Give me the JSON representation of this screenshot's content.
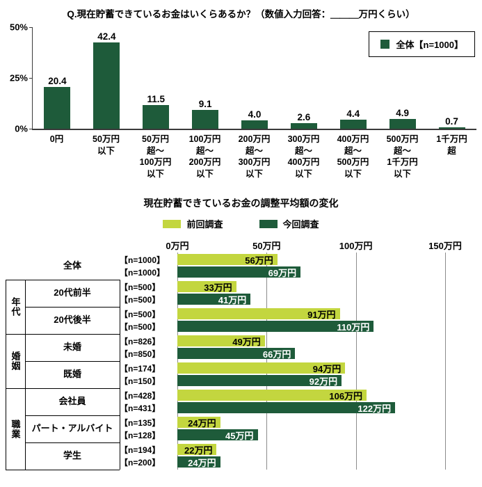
{
  "colors": {
    "dark_green": "#1e5b3a",
    "light_green": "#c3d63f",
    "grid": "#8c8c8c"
  },
  "chart_data": [
    {
      "type": "bar",
      "title": "Q.現在貯蓄できているお金はいくらあるか？（数値入力回答：＿＿＿万円くらい）",
      "series_name": "全体【n=1000】",
      "categories": [
        "0円",
        "50万円\n以下",
        "50万円\n超～\n100万円\n以下",
        "100万円\n超～\n200万円\n以下",
        "200万円\n超～\n300万円\n以下",
        "300万円\n超～\n400万円\n以下",
        "400万円\n超～\n500万円\n以下",
        "500万円\n超～\n1千万円\n以下",
        "1千万円\n超"
      ],
      "values": [
        20.4,
        42.4,
        11.5,
        9.1,
        4.0,
        2.6,
        4.4,
        4.9,
        0.7
      ],
      "value_labels": [
        "20.4",
        "42.4",
        "11.5",
        "9.1",
        "4.0",
        "2.6",
        "4.4",
        "4.9",
        "0.7"
      ],
      "ylabel": "%",
      "ylim": [
        0,
        50
      ],
      "y_tick_labels": [
        "50%",
        "25%",
        "0%"
      ],
      "grid": false,
      "legend_position": "top-right"
    },
    {
      "type": "bar",
      "orientation": "horizontal",
      "title": "現在貯蓄できているお金の調整平均額の変化",
      "xlim": [
        0,
        150
      ],
      "x_tick_values": [
        0,
        50,
        100,
        150
      ],
      "x_tick_labels": [
        "0万円",
        "50万円",
        "100万円",
        "150万円"
      ],
      "grid": true,
      "legend_position": "top-center",
      "series": [
        {
          "name": "前回調査",
          "color": "#c3d63f",
          "text_color": "#000000"
        },
        {
          "name": "今回調査",
          "color": "#1e5b3a",
          "text_color": "#ffffff"
        }
      ],
      "rows": [
        {
          "group": "",
          "category": "全体",
          "bars": [
            {
              "n": "【n=1000】",
              "value": 56,
              "label": "56万円"
            },
            {
              "n": "【n=1000】",
              "value": 69,
              "label": "69万円"
            }
          ]
        },
        {
          "group": "年代",
          "category": "20代前半",
          "bars": [
            {
              "n": "【n=500】",
              "value": 33,
              "label": "33万円"
            },
            {
              "n": "【n=500】",
              "value": 41,
              "label": "41万円"
            }
          ]
        },
        {
          "group": "年代",
          "category": "20代後半",
          "bars": [
            {
              "n": "【n=500】",
              "value": 91,
              "label": "91万円"
            },
            {
              "n": "【n=500】",
              "value": 110,
              "label": "110万円"
            }
          ]
        },
        {
          "group": "婚姻",
          "category": "未婚",
          "bars": [
            {
              "n": "【n=826】",
              "value": 49,
              "label": "49万円"
            },
            {
              "n": "【n=850】",
              "value": 66,
              "label": "66万円"
            }
          ]
        },
        {
          "group": "婚姻",
          "category": "既婚",
          "bars": [
            {
              "n": "【n=174】",
              "value": 94,
              "label": "94万円"
            },
            {
              "n": "【n=150】",
              "value": 92,
              "label": "92万円"
            }
          ]
        },
        {
          "group": "職業",
          "category": "会社員",
          "bars": [
            {
              "n": "【n=428】",
              "value": 106,
              "label": "106万円"
            },
            {
              "n": "【n=431】",
              "value": 122,
              "label": "122万円"
            }
          ]
        },
        {
          "group": "職業",
          "category": "パート・アルバイト",
          "bars": [
            {
              "n": "【n=135】",
              "value": 24,
              "label": "24万円"
            },
            {
              "n": "【n=128】",
              "value": 45,
              "label": "45万円"
            }
          ]
        },
        {
          "group": "職業",
          "category": "学生",
          "bars": [
            {
              "n": "【n=194】",
              "value": 22,
              "label": "22万円"
            },
            {
              "n": "【n=200】",
              "value": 24,
              "label": "24万円"
            }
          ]
        }
      ]
    }
  ]
}
